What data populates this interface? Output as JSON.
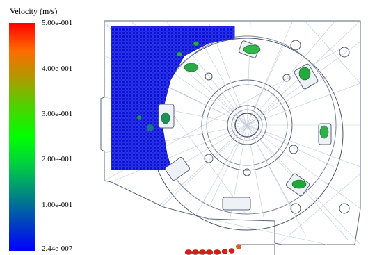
{
  "legend": {
    "title": "Velocity (m/s)",
    "ticks": [
      "5.00e-001",
      "4.00e-001",
      "3.00e-001",
      "2.00e-001",
      "1.00e-001",
      "2.44e-007"
    ],
    "colors": [
      "#ff0000",
      "#b09a00",
      "#00ff00",
      "#008a80",
      "#0000ff"
    ]
  }
}
